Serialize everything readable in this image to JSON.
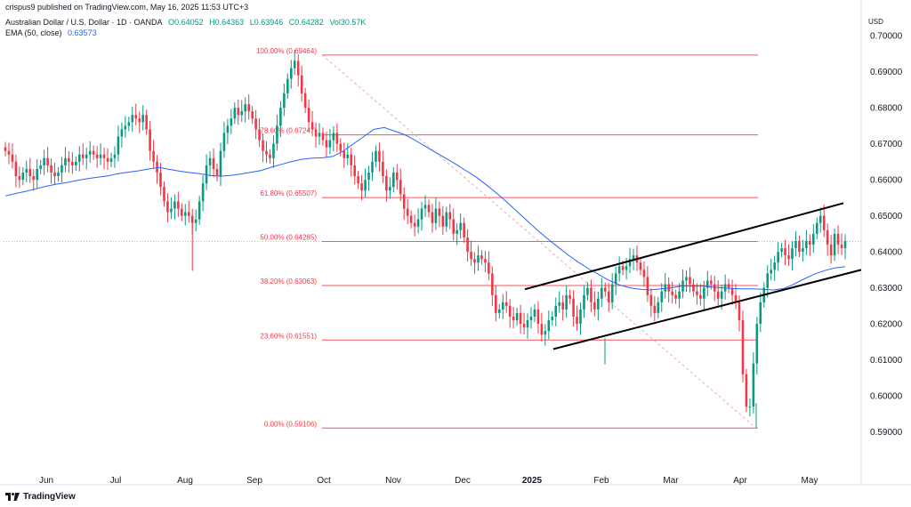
{
  "header": {
    "publisher_line": "crispus9 published on TradingView.com, May 16, 2025 11:53 UTC+3",
    "symbol_line": "Australian Dollar / U.S. Dollar · 1D · OANDA",
    "open": "O0.64052",
    "high": "H0.64363",
    "low": "L0.63946",
    "close": "C0.64282",
    "volume": "Vol30.57K",
    "ema_label": "EMA (50, close)",
    "ema_value": "0.63573"
  },
  "currency": "USD",
  "footer": {
    "brand": "TradingView"
  },
  "colors": {
    "up": "#089981",
    "down": "#f23645",
    "ema": "#2962ff",
    "fib": "#f23645",
    "fibline": "#f7a6ad",
    "channel": "#000000"
  },
  "chart_data": {
    "type": "candlestick",
    "y_ticks": [
      "0.70000",
      "0.69000",
      "0.68000",
      "0.67000",
      "0.66000",
      "0.65000",
      "0.64000",
      "0.63000",
      "0.62000",
      "0.61000",
      "0.60000",
      "0.59000"
    ],
    "ylim": [
      0.5815,
      0.7025
    ],
    "x_ticks": [
      "Jun",
      "Jul",
      "Aug",
      "Sep",
      "Oct",
      "Nov",
      "Dec",
      "2025",
      "Feb",
      "Mar",
      "Apr",
      "May"
    ],
    "current_price": 0.64282,
    "fib_levels": [
      {
        "label": "100.00% (0.69464)",
        "value": 0.69464
      },
      {
        "label": "78.60% (0.67247)",
        "value": 0.67247
      },
      {
        "label": "61.80% (0.65507)",
        "value": 0.65507
      },
      {
        "label": "50.00% (0.64285)",
        "value": 0.64285
      },
      {
        "label": "38.20% (0.63063)",
        "value": 0.63063
      },
      {
        "label": "23.60% (0.61551)",
        "value": 0.61551
      },
      {
        "label": "0.00% (0.59106)",
        "value": 0.59106
      }
    ],
    "closes": [
      0.668,
      0.667,
      0.665,
      0.661,
      0.66,
      0.662,
      0.663,
      0.661,
      0.66,
      0.663,
      0.664,
      0.666,
      0.664,
      0.662,
      0.661,
      0.662,
      0.664,
      0.666,
      0.665,
      0.664,
      0.665,
      0.667,
      0.666,
      0.667,
      0.668,
      0.667,
      0.666,
      0.667,
      0.666,
      0.665,
      0.666,
      0.667,
      0.672,
      0.674,
      0.675,
      0.676,
      0.678,
      0.677,
      0.676,
      0.678,
      0.674,
      0.668,
      0.665,
      0.662,
      0.658,
      0.654,
      0.651,
      0.652,
      0.654,
      0.652,
      0.65,
      0.651,
      0.65,
      0.648,
      0.649,
      0.654,
      0.659,
      0.664,
      0.666,
      0.663,
      0.661,
      0.668,
      0.673,
      0.675,
      0.677,
      0.68,
      0.678,
      0.679,
      0.681,
      0.679,
      0.677,
      0.674,
      0.671,
      0.668,
      0.667,
      0.666,
      0.67,
      0.675,
      0.68,
      0.684,
      0.688,
      0.691,
      0.693,
      0.689,
      0.684,
      0.68,
      0.676,
      0.674,
      0.672,
      0.673,
      0.671,
      0.669,
      0.671,
      0.673,
      0.67,
      0.668,
      0.666,
      0.667,
      0.664,
      0.661,
      0.659,
      0.657,
      0.66,
      0.662,
      0.665,
      0.668,
      0.665,
      0.661,
      0.657,
      0.658,
      0.662,
      0.66,
      0.656,
      0.652,
      0.65,
      0.648,
      0.647,
      0.649,
      0.652,
      0.653,
      0.651,
      0.648,
      0.652,
      0.65,
      0.647,
      0.651,
      0.649,
      0.645,
      0.646,
      0.648,
      0.644,
      0.64,
      0.638,
      0.637,
      0.639,
      0.638,
      0.637,
      0.634,
      0.628,
      0.623,
      0.624,
      0.626,
      0.625,
      0.622,
      0.621,
      0.623,
      0.62,
      0.619,
      0.621,
      0.622,
      0.624,
      0.62,
      0.617,
      0.618,
      0.621,
      0.622,
      0.625,
      0.626,
      0.624,
      0.628,
      0.627,
      0.622,
      0.62,
      0.624,
      0.628,
      0.63,
      0.626,
      0.624,
      0.627,
      0.63,
      0.629,
      0.626,
      0.631,
      0.634,
      0.636,
      0.635,
      0.636,
      0.638,
      0.639,
      0.637,
      0.635,
      0.633,
      0.628,
      0.625,
      0.623,
      0.626,
      0.629,
      0.631,
      0.629,
      0.628,
      0.627,
      0.629,
      0.632,
      0.633,
      0.631,
      0.629,
      0.628,
      0.627,
      0.63,
      0.632,
      0.631,
      0.629,
      0.627,
      0.629,
      0.631,
      0.63,
      0.628,
      0.626,
      0.621,
      0.606,
      0.597,
      0.597,
      0.609,
      0.62,
      0.626,
      0.63,
      0.634,
      0.635,
      0.637,
      0.64,
      0.641,
      0.639,
      0.638,
      0.641,
      0.643,
      0.64,
      0.641,
      0.643,
      0.642,
      0.645,
      0.648,
      0.65,
      0.646,
      0.642,
      0.639,
      0.645,
      0.642,
      0.641,
      0.643
    ],
    "ema50": [
      0.6555,
      0.6562,
      0.6568,
      0.6575,
      0.6582,
      0.6588,
      0.6592,
      0.6598,
      0.6603,
      0.6607,
      0.6611,
      0.6617,
      0.6621,
      0.6625,
      0.663,
      0.6634,
      0.6629,
      0.6624,
      0.662,
      0.6617,
      0.6612,
      0.661,
      0.6612,
      0.6616,
      0.6621,
      0.6626,
      0.6635,
      0.6643,
      0.6651,
      0.6657,
      0.666,
      0.6661,
      0.6665,
      0.668,
      0.67,
      0.672,
      0.674,
      0.6745,
      0.6735,
      0.6725,
      0.671,
      0.6693,
      0.6676,
      0.666,
      0.6643,
      0.6625,
      0.6607,
      0.6585,
      0.6562,
      0.6537,
      0.6511,
      0.6485,
      0.6459,
      0.6435,
      0.6412,
      0.639,
      0.637,
      0.6352,
      0.6336,
      0.632,
      0.6308,
      0.63,
      0.6296,
      0.6294,
      0.6297,
      0.63,
      0.6305,
      0.6305,
      0.6305,
      0.6302,
      0.63,
      0.6298,
      0.6297,
      0.6297,
      0.6296,
      0.6294,
      0.6298,
      0.631,
      0.6325,
      0.6338,
      0.6348,
      0.6355,
      0.6359
    ],
    "channel_upper": {
      "start_x": 590,
      "start_y": 0.6296,
      "end_x": 948,
      "end_y": 0.6535
    },
    "channel_lower": {
      "start_x": 622,
      "start_y": 0.613,
      "end_x": 968,
      "end_y": 0.635
    },
    "dip_low": 0.5911,
    "aug_wick_low": 0.6347
  }
}
